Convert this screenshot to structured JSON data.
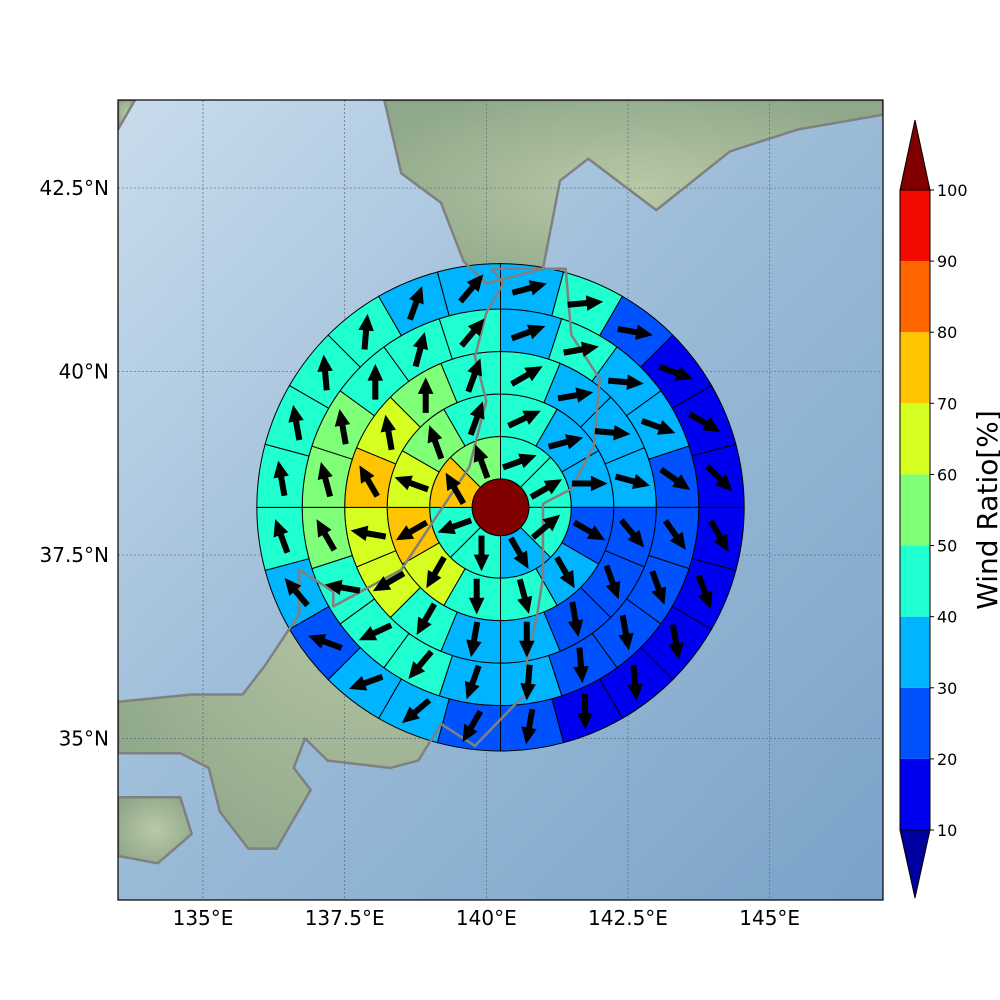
{
  "chart_data": {
    "type": "heatmap",
    "subtype": "polar-sector-map-with-wind-vectors",
    "map": {
      "lon_range": [
        133.5,
        147.0
      ],
      "lat_range": [
        32.8,
        43.7
      ],
      "x_ticks": [
        135,
        137.5,
        140,
        142.5,
        145
      ],
      "x_tick_labels": [
        "135°E",
        "137.5°E",
        "140°E",
        "142.5°E",
        "145°E"
      ],
      "y_ticks": [
        35,
        37.5,
        40,
        42.5
      ],
      "y_tick_labels": [
        "35°N",
        "37.5°N",
        "40°N",
        "42.5°N"
      ],
      "grid": true,
      "basemap": "shaded relief, coastlines gray"
    },
    "center": {
      "lon": 140.25,
      "lat": 38.15
    },
    "center_disc_color": "#800000",
    "rings_deg": [
      0.5,
      1.25,
      2.0,
      2.75,
      3.5,
      4.3
    ],
    "sectors_per_ring": [
      8,
      12,
      16,
      20,
      24
    ],
    "ring_values": [
      [
        45,
        45,
        45,
        35,
        45,
        45,
        75,
        55
      ],
      [
        45,
        35,
        35,
        25,
        35,
        45,
        45,
        65,
        75,
        65,
        55,
        45
      ],
      [
        45,
        35,
        35,
        35,
        25,
        25,
        25,
        35,
        35,
        45,
        65,
        65,
        75,
        65,
        55,
        45
      ],
      [
        35,
        45,
        35,
        35,
        25,
        25,
        25,
        25,
        25,
        35,
        35,
        45,
        45,
        45,
        55,
        55,
        55,
        45,
        45,
        45
      ],
      [
        35,
        45,
        25,
        15,
        15,
        15,
        15,
        15,
        15,
        15,
        15,
        25,
        25,
        35,
        35,
        25,
        35,
        45,
        45,
        45,
        45,
        45,
        35,
        35
      ]
    ],
    "ring_directions_deg": [
      [
        70,
        60,
        50,
        150,
        180,
        250,
        330,
        340
      ],
      [
        65,
        75,
        90,
        120,
        150,
        165,
        180,
        210,
        240,
        290,
        340,
        20
      ],
      [
        60,
        80,
        95,
        105,
        140,
        160,
        170,
        180,
        190,
        210,
        240,
        280,
        330,
        350,
        0,
        20
      ],
      [
        70,
        80,
        95,
        110,
        125,
        145,
        160,
        170,
        175,
        185,
        200,
        220,
        245,
        280,
        330,
        345,
        350,
        0,
        15,
        40
      ],
      [
        75,
        85,
        100,
        110,
        120,
        135,
        150,
        160,
        170,
        175,
        180,
        190,
        210,
        230,
        250,
        290,
        320,
        340,
        350,
        350,
        355,
        5,
        20,
        40
      ]
    ],
    "colorbar": {
      "label": "Wind Ratio[%]",
      "ticks": [
        10,
        20,
        30,
        40,
        50,
        60,
        70,
        80,
        90,
        100
      ],
      "levels": [
        0,
        10,
        20,
        30,
        40,
        50,
        60,
        70,
        80,
        90,
        100
      ],
      "colors": [
        "#0000a0",
        "#0000f0",
        "#0052ff",
        "#00b4ff",
        "#20ffd0",
        "#80ff78",
        "#d4ff20",
        "#ffc400",
        "#ff6600",
        "#f00a00",
        "#800000"
      ],
      "extend": "both"
    },
    "palette": {
      "coastline": "#808080",
      "sector_edge": "#000000"
    }
  }
}
